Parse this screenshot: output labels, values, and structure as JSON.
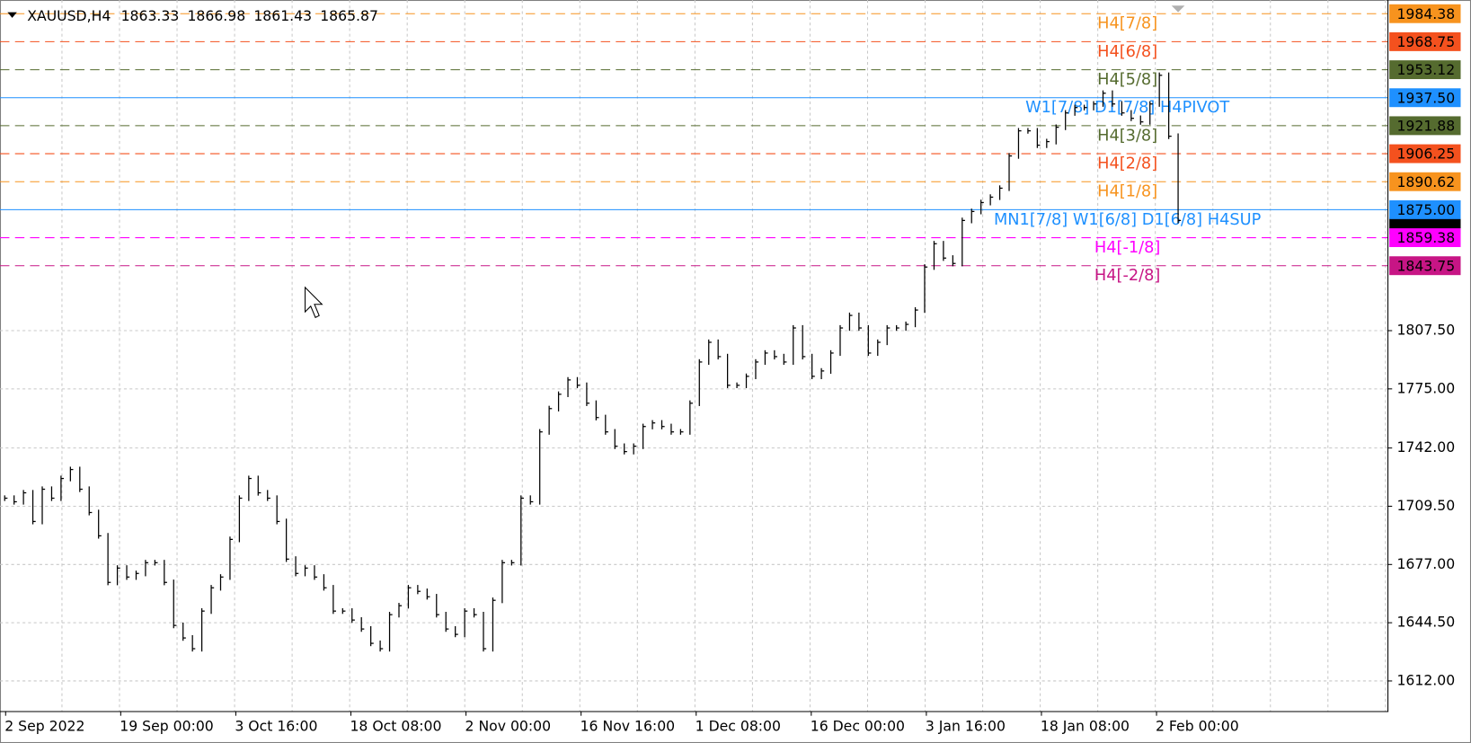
{
  "chart_data": {
    "type": "price-bars",
    "header": {
      "symbol": "XAUUSD,H4",
      "open": 1863.33,
      "high": 1866.98,
      "low": 1861.43,
      "close": 1865.87
    },
    "color": "#000000",
    "categories": [
      "2 Sep 2022",
      "19 Sep 00:00",
      "3 Oct 16:00",
      "18 Oct 08:00",
      "2 Nov 00:00",
      "16 Nov 16:00",
      "1 Dec 08:00",
      "16 Dec 00:00",
      "3 Jan 16:00",
      "18 Jan 08:00",
      "2 Feb 00:00"
    ],
    "close": [
      1714,
      1712,
      1717,
      1701,
      1719,
      1714,
      1725,
      1730,
      1719,
      1706,
      1693,
      1667,
      1675,
      1670,
      1672,
      1678,
      1678,
      1667,
      1643,
      1636,
      1630,
      1651,
      1664,
      1670,
      1691,
      1714,
      1725,
      1717,
      1714,
      1701,
      1680,
      1672,
      1675,
      1670,
      1664,
      1651,
      1651,
      1646,
      1641,
      1633,
      1630,
      1649,
      1654,
      1664,
      1662,
      1659,
      1649,
      1641,
      1638,
      1651,
      1649,
      1630,
      1657,
      1678,
      1678,
      1714,
      1712,
      1751,
      1764,
      1772,
      1780,
      1777,
      1767,
      1759,
      1751,
      1743,
      1740,
      1743,
      1754,
      1756,
      1754,
      1751,
      1751,
      1767,
      1790,
      1801,
      1793,
      1777,
      1777,
      1782,
      1790,
      1795,
      1793,
      1790,
      1809,
      1793,
      1782,
      1785,
      1795,
      1809,
      1816,
      1809,
      1795,
      1801,
      1809,
      1809,
      1811,
      1819,
      1843,
      1856,
      1848,
      1845,
      1869,
      1874,
      1879,
      1882,
      1887,
      1905,
      1919,
      1919,
      1911,
      1913,
      1921,
      1929,
      1932,
      1932,
      1934,
      1940,
      1934,
      1929,
      1926,
      1924,
      1934,
      1950,
      1916,
      1869
    ],
    "ylim": [
      1595.2,
      1989.4
    ],
    "yticks": [
      {
        "value": 1612,
        "label": "1612.00"
      },
      {
        "value": 1644.5,
        "label": "1644.50"
      },
      {
        "value": 1677,
        "label": "1677.00"
      },
      {
        "value": 1709.5,
        "label": "1709.50"
      },
      {
        "value": 1742,
        "label": "1742.00"
      },
      {
        "value": 1775,
        "label": "1775.00"
      },
      {
        "value": 1807.5,
        "label": "1807.50"
      }
    ],
    "grid": true,
    "levels": [
      {
        "name": "H4[7/8]",
        "price": {
          "value": 1984.38,
          "label": "1984.38"
        },
        "color": "#f7931e",
        "style": "dashed"
      },
      {
        "name": "H4[6/8]",
        "price": {
          "value": 1968.75,
          "label": "1968.75"
        },
        "color": "#f4511e",
        "style": "dashed"
      },
      {
        "name": "H4[5/8]",
        "price": {
          "value": 1953.12,
          "label": "1953.12"
        },
        "color": "#556b2f",
        "style": "dashed"
      },
      {
        "name": "W1[7/8] D1[7/8] H4PIVOT",
        "price": {
          "value": 1937.5,
          "label": "1937.50"
        },
        "color": "#1e90ff",
        "style": "solid"
      },
      {
        "name": "H4[3/8]",
        "price": {
          "value": 1921.88,
          "label": "1921.88"
        },
        "color": "#556b2f",
        "style": "dashed"
      },
      {
        "name": "H4[2/8]",
        "price": {
          "value": 1906.25,
          "label": "1906.25"
        },
        "color": "#f4511e",
        "style": "dashed"
      },
      {
        "name": "H4[1/8]",
        "price": {
          "value": 1890.62,
          "label": "1890.62"
        },
        "color": "#f7931e",
        "style": "dashed"
      },
      {
        "name": "MN1[7/8] W1[6/8] D1[6/8] H4SUP",
        "price": {
          "value": 1875,
          "label": "1875.00"
        },
        "color": "#1e90ff",
        "style": "solid"
      },
      {
        "name": "H4[-1/8]",
        "price": {
          "value": 1859.38,
          "label": "1859.38"
        },
        "color": "#ff00ff",
        "style": "dashed"
      },
      {
        "name": "H4[-2/8]",
        "price": {
          "value": 1843.75,
          "label": "1843.75"
        },
        "color": "#c71585",
        "style": "dashed"
      }
    ]
  }
}
